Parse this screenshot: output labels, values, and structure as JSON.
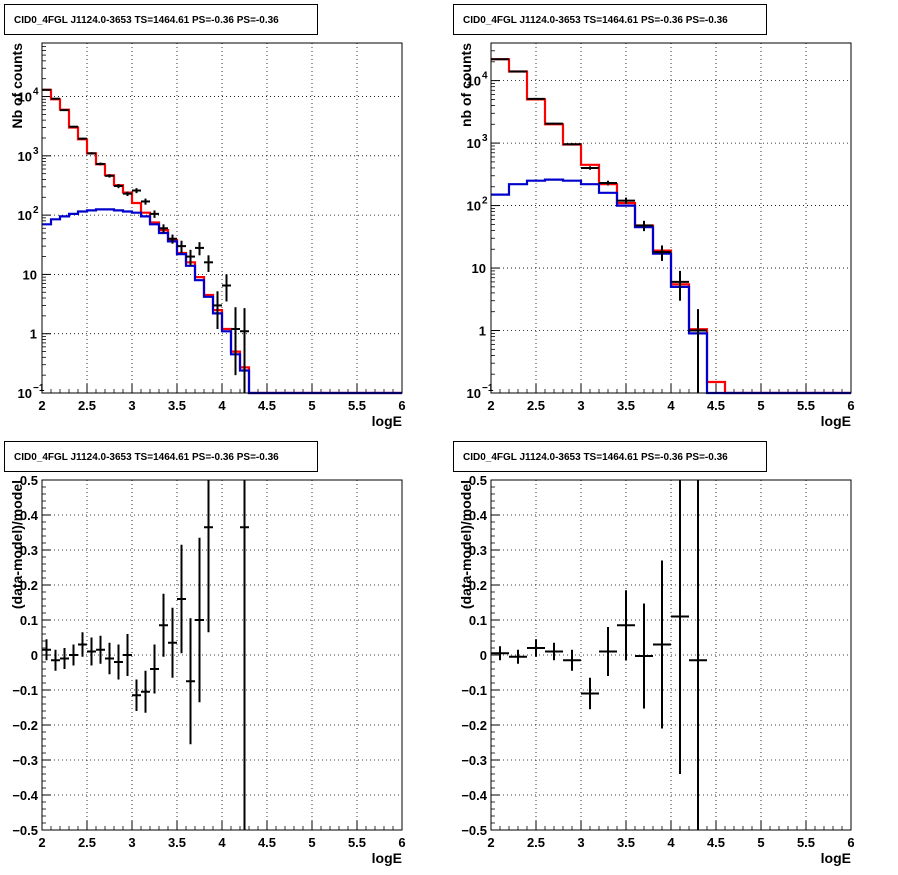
{
  "chart_data": [
    {
      "type": "line",
      "title": "CID0_4FGL J1124.0-3653 TS=1464.61 PS=-0.36 PS=-0.36",
      "xlabel": "logE",
      "ylabel": "Nb of counts",
      "xlim": [
        2,
        6
      ],
      "ylim": [
        0.1,
        80000
      ],
      "yscale": "log",
      "grid": true,
      "xticks": [
        "2",
        "2.5",
        "3",
        "3.5",
        "4",
        "4.5",
        "5",
        "5.5",
        "6"
      ],
      "yticks": [
        {
          "value": 0.1,
          "label": "10",
          "exp": "−1"
        },
        {
          "value": 1,
          "label": "1",
          "exp": ""
        },
        {
          "value": 10,
          "label": "10",
          "exp": ""
        },
        {
          "value": 100,
          "label": "10",
          "exp": "2"
        },
        {
          "value": 1000,
          "label": "10",
          "exp": "3"
        },
        {
          "value": 10000,
          "label": "10",
          "exp": "4"
        }
      ],
      "bin_edges": [
        2.0,
        2.1,
        2.2,
        2.3,
        2.4,
        2.5,
        2.6,
        2.7,
        2.8,
        2.9,
        3.0,
        3.1,
        3.2,
        3.3,
        3.4,
        3.5,
        3.6,
        3.7,
        3.8,
        3.9,
        4.0,
        4.1,
        4.2,
        4.3,
        4.4,
        4.5,
        4.6,
        4.7,
        4.8,
        4.9,
        5.0,
        5.1,
        5.2,
        5.3,
        5.4,
        5.5,
        5.6,
        5.7,
        5.8,
        5.9,
        6.0
      ],
      "series": [
        {
          "name": "",
          "style": "step",
          "color": "#ff0000",
          "values": [
            13000,
            9000,
            6000,
            3000,
            1900,
            1100,
            720,
            470,
            320,
            240,
            160,
            110,
            75,
            56,
            38,
            23,
            16,
            9,
            4.5,
            2.5,
            1.2,
            0.5,
            0.27,
            0.1,
            0.1,
            0.1,
            0.1,
            0.1,
            0.1,
            0.1,
            0.1,
            0.1,
            0.1,
            0.1,
            0.1,
            0.1,
            0.1,
            0.1,
            0.1,
            0.1
          ]
        },
        {
          "name": "",
          "style": "step",
          "color": "#0000cc",
          "values": [
            70,
            85,
            95,
            105,
            115,
            120,
            125,
            125,
            120,
            115,
            110,
            95,
            70,
            50,
            36,
            22,
            14,
            8,
            4.2,
            2.2,
            1.1,
            0.45,
            0.24,
            0.1,
            0.1,
            0.1,
            0.1,
            0.1,
            0.1,
            0.1,
            0.1,
            0.1,
            0.1,
            0.1,
            0.1,
            0.1,
            0.1,
            0.1,
            0.1,
            0.1
          ]
        },
        {
          "name": "",
          "style": "errorbar",
          "color": "#000000",
          "x": [
            2.05,
            2.15,
            2.25,
            2.35,
            2.45,
            2.55,
            2.65,
            2.75,
            2.85,
            2.95,
            3.05,
            3.15,
            3.25,
            3.35,
            3.45,
            3.55,
            3.65,
            3.75,
            3.85,
            3.95,
            4.05,
            4.15,
            4.25
          ],
          "y": [
            13000,
            9200,
            5900,
            3100,
            1950,
            1100,
            730,
            460,
            310,
            230,
            260,
            170,
            105,
            60,
            40,
            30,
            20,
            28,
            16,
            3,
            6.5,
            1.2,
            1.1
          ],
          "err_low": [
            180,
            150,
            120,
            90,
            70,
            50,
            40,
            30,
            25,
            20,
            25,
            20,
            15,
            10,
            7,
            7,
            6,
            7,
            5,
            1.8,
            3,
            1,
            1.0
          ],
          "err_high": [
            180,
            150,
            120,
            90,
            70,
            50,
            40,
            30,
            25,
            20,
            25,
            20,
            15,
            10,
            7,
            7,
            6,
            7,
            5,
            2.2,
            3.5,
            1.6,
            1.6
          ]
        }
      ]
    },
    {
      "type": "line",
      "title": "CID0_4FGL J1124.0-3653 TS=1464.61 PS=-0.36 PS=-0.36",
      "xlabel": "logE",
      "ylabel": "nb of counts",
      "xlim": [
        2,
        6
      ],
      "ylim": [
        0.1,
        40000
      ],
      "yscale": "log",
      "grid": true,
      "xticks": [
        "2",
        "2.5",
        "3",
        "3.5",
        "4",
        "4.5",
        "5",
        "5.5",
        "6"
      ],
      "yticks": [
        {
          "value": 0.1,
          "label": "10",
          "exp": "−1"
        },
        {
          "value": 1,
          "label": "1",
          "exp": ""
        },
        {
          "value": 10,
          "label": "10",
          "exp": ""
        },
        {
          "value": 100,
          "label": "10",
          "exp": "2"
        },
        {
          "value": 1000,
          "label": "10",
          "exp": "3"
        },
        {
          "value": 10000,
          "label": "10",
          "exp": "4"
        }
      ],
      "bin_edges": [
        2.0,
        2.2,
        2.4,
        2.6,
        2.8,
        3.0,
        3.2,
        3.4,
        3.6,
        3.8,
        4.0,
        4.2,
        4.4,
        4.6,
        4.8,
        5.0,
        5.2,
        5.4,
        5.6,
        5.8,
        6.0
      ],
      "series": [
        {
          "name": "",
          "style": "step",
          "color": "#ff0000",
          "values": [
            22000,
            14000,
            5000,
            2000,
            950,
            450,
            220,
            110,
            48,
            19,
            5.5,
            1.05,
            0.15,
            0.1,
            0.1,
            0.1,
            0.1,
            0.1,
            0.1,
            0.1
          ]
        },
        {
          "name": "",
          "style": "step",
          "color": "#0000cc",
          "values": [
            150,
            220,
            250,
            260,
            250,
            220,
            160,
            100,
            45,
            17,
            5,
            0.9,
            0.1,
            0.1,
            0.1,
            0.1,
            0.1,
            0.1,
            0.1,
            0.1
          ]
        },
        {
          "name": "",
          "style": "errorbar",
          "color": "#000000",
          "x": [
            2.1,
            2.3,
            2.5,
            2.7,
            2.9,
            3.1,
            3.3,
            3.5,
            3.7,
            3.9,
            4.1,
            4.3
          ],
          "y": [
            22000,
            14000,
            5100,
            2050,
            960,
            400,
            230,
            120,
            48,
            18,
            6,
            1.0
          ],
          "err_low": [
            200,
            150,
            90,
            60,
            40,
            25,
            20,
            14,
            9,
            5,
            3,
            0.95
          ],
          "err_high": [
            200,
            150,
            90,
            60,
            40,
            25,
            20,
            14,
            9,
            5,
            3,
            1.2
          ]
        }
      ]
    },
    {
      "type": "scatter",
      "title": "CID0_4FGL J1124.0-3653 TS=1464.61 PS=-0.36 PS=-0.36",
      "xlabel": "logE",
      "ylabel": "(data-model)/model",
      "xlim": [
        2,
        6
      ],
      "ylim": [
        -0.5,
        0.5
      ],
      "grid": true,
      "xticks": [
        "2",
        "2.5",
        "3",
        "3.5",
        "4",
        "4.5",
        "5",
        "5.5",
        "6"
      ],
      "yticks": [
        "−0.5",
        "−0.4",
        "−0.3",
        "−0.2",
        "−0.1",
        "0",
        "0.1",
        "0.2",
        "0.3",
        "0.4",
        "0.5"
      ],
      "series": [
        {
          "name": "",
          "style": "errorbar",
          "color": "#000000",
          "x": [
            2.05,
            2.15,
            2.25,
            2.35,
            2.45,
            2.55,
            2.65,
            2.75,
            2.85,
            2.95,
            3.05,
            3.15,
            3.25,
            3.35,
            3.45,
            3.55,
            3.65,
            3.75,
            3.85,
            4.25
          ],
          "y": [
            0.015,
            -0.015,
            -0.01,
            0.0,
            0.03,
            0.01,
            0.015,
            -0.01,
            -0.02,
            0.0,
            -0.115,
            -0.105,
            -0.04,
            0.085,
            0.035,
            0.16,
            -0.075,
            0.1,
            0.365,
            0.365
          ],
          "err": [
            0.03,
            0.03,
            0.03,
            0.03,
            0.035,
            0.04,
            0.04,
            0.045,
            0.05,
            0.06,
            0.045,
            0.06,
            0.07,
            0.09,
            0.1,
            0.155,
            0.18,
            0.235,
            0.3,
            1.5
          ]
        }
      ]
    },
    {
      "type": "scatter",
      "title": "CID0_4FGL J1124.0-3653 TS=1464.61 PS=-0.36 PS=-0.36",
      "xlabel": "logE",
      "ylabel": "(data-model)/model",
      "xlim": [
        2,
        6
      ],
      "ylim": [
        -0.5,
        0.5
      ],
      "grid": true,
      "xticks": [
        "2",
        "2.5",
        "3",
        "3.5",
        "4",
        "4.5",
        "5",
        "5.5",
        "6"
      ],
      "yticks": [
        "−0.5",
        "−0.4",
        "−0.3",
        "−0.2",
        "−0.1",
        "0",
        "0.1",
        "0.2",
        "0.3",
        "0.4",
        "0.5"
      ],
      "series": [
        {
          "name": "",
          "style": "errorbar",
          "color": "#000000",
          "x": [
            2.1,
            2.3,
            2.5,
            2.7,
            2.9,
            3.1,
            3.3,
            3.5,
            3.7,
            3.9,
            4.1,
            4.3
          ],
          "y": [
            0.005,
            -0.005,
            0.02,
            0.01,
            -0.015,
            -0.11,
            0.01,
            0.085,
            -0.003,
            0.03,
            0.11,
            -0.015
          ],
          "err": [
            0.02,
            0.02,
            0.025,
            0.025,
            0.03,
            0.045,
            0.07,
            0.1,
            0.15,
            0.24,
            0.45,
            1.5
          ]
        }
      ]
    }
  ]
}
